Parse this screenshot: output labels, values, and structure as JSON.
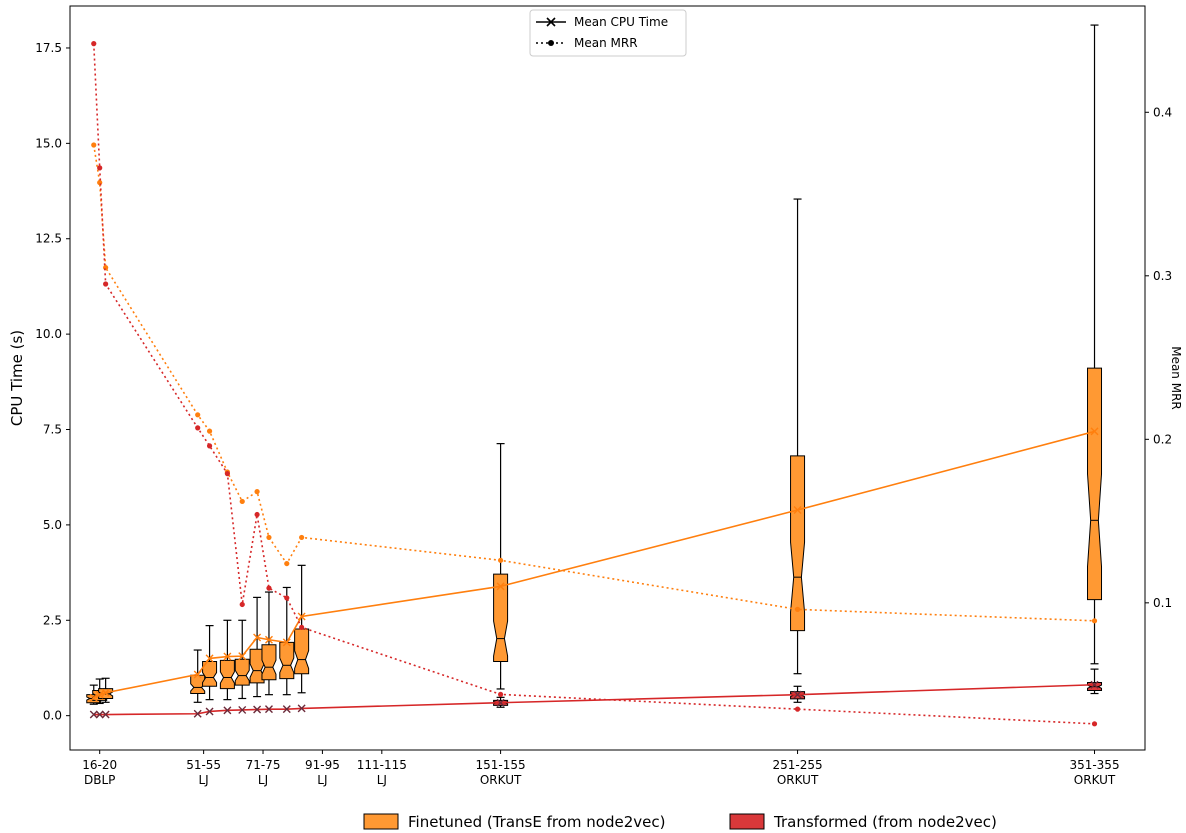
{
  "chart_data": {
    "type": "box",
    "ylabel": "CPU Time (s)",
    "ylabel2": "Mean MRR",
    "ylim": [
      -0.9,
      18.6
    ],
    "y2lim": [
      0.01,
      0.465
    ],
    "yticks": [
      0.0,
      2.5,
      5.0,
      7.5,
      10.0,
      12.5,
      15.0,
      17.5
    ],
    "ytick_labels": [
      "0.0",
      "2.5",
      "5.0",
      "7.5",
      "10.0",
      "12.5",
      "15.0",
      "17.5"
    ],
    "y2ticks": [
      0.1,
      0.2,
      0.3,
      0.4
    ],
    "y2tick_labels": [
      "0.1",
      "0.2",
      "0.3",
      "0.4"
    ],
    "xlim": [
      8,
      370
    ],
    "xticks": [
      {
        "x": 18,
        "line1": "16-20",
        "line2": "DBLP"
      },
      {
        "x": 53,
        "line1": "51-55",
        "line2": "LJ"
      },
      {
        "x": 73,
        "line1": "71-75",
        "line2": "LJ"
      },
      {
        "x": 93,
        "line1": "91-95",
        "line2": "LJ"
      },
      {
        "x": 113,
        "line1": "111-115",
        "line2": "LJ"
      },
      {
        "x": 153,
        "line1": "151-155",
        "line2": "ORKUT"
      },
      {
        "x": 253,
        "line1": "251-255",
        "line2": "ORKUT"
      },
      {
        "x": 353,
        "line1": "351-355",
        "line2": "ORKUT"
      }
    ],
    "mean_legend": [
      {
        "label": "Mean CPU Time",
        "style": "solid-x"
      },
      {
        "label": "Mean MRR",
        "style": "dotted-dot"
      }
    ],
    "series": [
      {
        "name": "Finetuned (TransE from node2vec)",
        "color": "#ff7f0e",
        "box_color": "#ff9933",
        "boxes": [
          {
            "x": 16,
            "whislo": 0.3,
            "q1": 0.34,
            "med": 0.45,
            "q3": 0.55,
            "whishi": 0.8
          },
          {
            "x": 18,
            "whislo": 0.32,
            "q1": 0.4,
            "med": 0.53,
            "q3": 0.66,
            "whishi": 0.96
          },
          {
            "x": 20,
            "whislo": 0.35,
            "q1": 0.45,
            "med": 0.57,
            "q3": 0.71,
            "whishi": 0.98
          },
          {
            "x": 51,
            "whislo": 0.35,
            "q1": 0.58,
            "med": 0.74,
            "q3": 1.06,
            "whishi": 1.72
          },
          {
            "x": 55,
            "whislo": 0.42,
            "q1": 0.77,
            "med": 1.0,
            "q3": 1.42,
            "whishi": 2.36
          },
          {
            "x": 61,
            "whislo": 0.42,
            "q1": 0.71,
            "med": 1.0,
            "q3": 1.45,
            "whishi": 2.5
          },
          {
            "x": 66,
            "whislo": 0.45,
            "q1": 0.8,
            "med": 1.05,
            "q3": 1.48,
            "whishi": 2.5
          },
          {
            "x": 71,
            "whislo": 0.5,
            "q1": 0.86,
            "med": 1.18,
            "q3": 1.74,
            "whishi": 3.1
          },
          {
            "x": 75,
            "whislo": 0.55,
            "q1": 0.94,
            "med": 1.27,
            "q3": 1.86,
            "whishi": 3.24
          },
          {
            "x": 81,
            "whislo": 0.55,
            "q1": 0.97,
            "med": 1.32,
            "q3": 1.92,
            "whishi": 3.36
          },
          {
            "x": 86,
            "whislo": 0.6,
            "q1": 1.1,
            "med": 1.47,
            "q3": 2.27,
            "whishi": 3.94
          },
          {
            "x": 153,
            "whislo": 0.7,
            "q1": 1.42,
            "med": 2.02,
            "q3": 3.71,
            "whishi": 7.13
          },
          {
            "x": 253,
            "whislo": 1.1,
            "q1": 2.23,
            "med": 3.63,
            "q3": 6.81,
            "whishi": 13.54
          },
          {
            "x": 353,
            "whislo": 1.36,
            "q1": 3.04,
            "med": 5.12,
            "q3": 9.11,
            "whishi": 18.1
          }
        ],
        "mean_cpu": [
          {
            "x": 16,
            "y": 0.47
          },
          {
            "x": 18,
            "y": 0.55
          },
          {
            "x": 20,
            "y": 0.6
          },
          {
            "x": 51,
            "y": 1.08
          },
          {
            "x": 55,
            "y": 1.5
          },
          {
            "x": 61,
            "y": 1.55
          },
          {
            "x": 66,
            "y": 1.56
          },
          {
            "x": 71,
            "y": 2.05
          },
          {
            "x": 75,
            "y": 1.99
          },
          {
            "x": 81,
            "y": 1.92
          },
          {
            "x": 86,
            "y": 2.6
          },
          {
            "x": 153,
            "y": 3.39
          },
          {
            "x": 253,
            "y": 5.39
          },
          {
            "x": 353,
            "y": 7.45
          }
        ],
        "mean_mrr": [
          {
            "x": 16,
            "y": 0.38
          },
          {
            "x": 18,
            "y": 0.357
          },
          {
            "x": 20,
            "y": 0.305
          },
          {
            "x": 51,
            "y": 0.215
          },
          {
            "x": 55,
            "y": 0.205
          },
          {
            "x": 61,
            "y": 0.18
          },
          {
            "x": 66,
            "y": 0.162
          },
          {
            "x": 71,
            "y": 0.168
          },
          {
            "x": 75,
            "y": 0.14
          },
          {
            "x": 81,
            "y": 0.124
          },
          {
            "x": 86,
            "y": 0.14
          },
          {
            "x": 153,
            "y": 0.126
          },
          {
            "x": 253,
            "y": 0.096
          },
          {
            "x": 353,
            "y": 0.089
          }
        ]
      },
      {
        "name": "Transformed (from node2vec)",
        "color": "#d62728",
        "box_color": "#d9383a",
        "boxes": [
          {
            "x": 153,
            "whislo": 0.22,
            "q1": 0.27,
            "med": 0.34,
            "q3": 0.4,
            "whishi": 0.48
          },
          {
            "x": 253,
            "whislo": 0.35,
            "q1": 0.44,
            "med": 0.54,
            "q3": 0.63,
            "whishi": 0.77
          },
          {
            "x": 353,
            "whislo": 0.58,
            "q1": 0.66,
            "med": 0.76,
            "q3": 0.87,
            "whishi": 1.22
          }
        ],
        "mean_cpu": [
          {
            "x": 16,
            "y": 0.03
          },
          {
            "x": 18,
            "y": 0.03
          },
          {
            "x": 20,
            "y": 0.03
          },
          {
            "x": 51,
            "y": 0.05
          },
          {
            "x": 55,
            "y": 0.11
          },
          {
            "x": 61,
            "y": 0.14
          },
          {
            "x": 66,
            "y": 0.15
          },
          {
            "x": 71,
            "y": 0.16
          },
          {
            "x": 75,
            "y": 0.17
          },
          {
            "x": 81,
            "y": 0.17
          },
          {
            "x": 86,
            "y": 0.19
          },
          {
            "x": 153,
            "y": 0.34
          },
          {
            "x": 253,
            "y": 0.55
          },
          {
            "x": 353,
            "y": 0.81
          }
        ],
        "mean_mrr": [
          {
            "x": 16,
            "y": 0.442
          },
          {
            "x": 18,
            "y": 0.366
          },
          {
            "x": 20,
            "y": 0.295
          },
          {
            "x": 51,
            "y": 0.207
          },
          {
            "x": 55,
            "y": 0.196
          },
          {
            "x": 61,
            "y": 0.179
          },
          {
            "x": 66,
            "y": 0.099
          },
          {
            "x": 71,
            "y": 0.154
          },
          {
            "x": 75,
            "y": 0.109
          },
          {
            "x": 81,
            "y": 0.103
          },
          {
            "x": 86,
            "y": 0.085
          },
          {
            "x": 153,
            "y": 0.044
          },
          {
            "x": 253,
            "y": 0.035
          },
          {
            "x": 353,
            "y": 0.026
          }
        ]
      }
    ],
    "legend_position": "bottom-center",
    "mean_legend_position": "top-center",
    "grid": false
  }
}
